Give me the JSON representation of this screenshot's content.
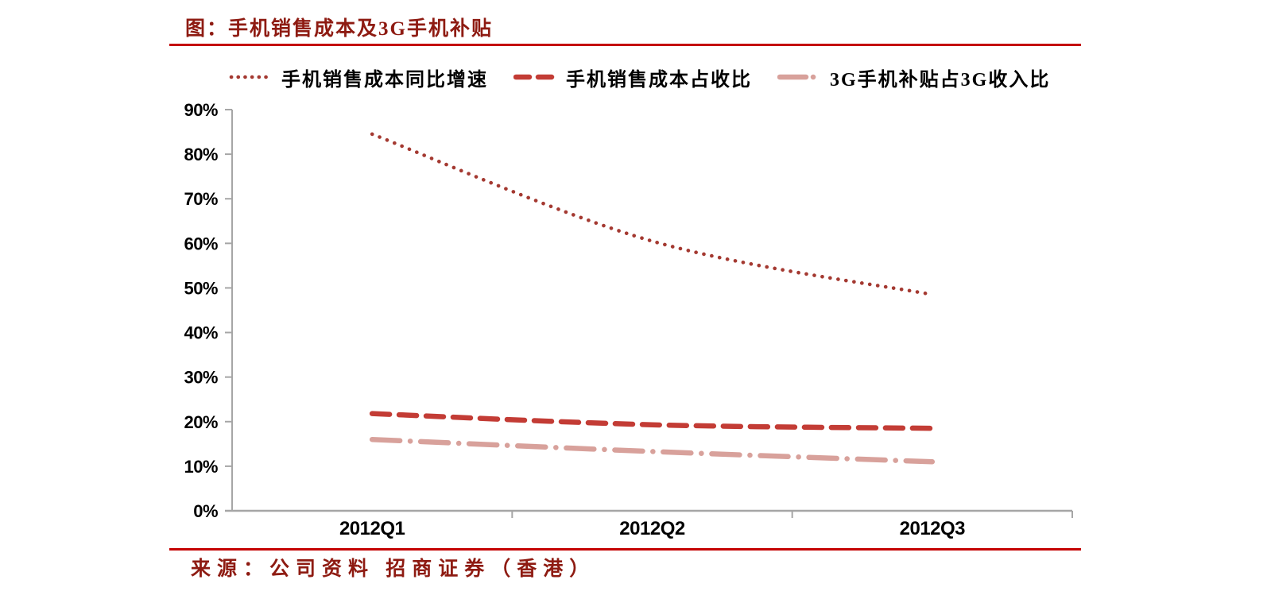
{
  "title": {
    "text": "图：手机销售成本及3G手机补贴",
    "color": "#8E1B12"
  },
  "rules": {
    "color": "#C40000"
  },
  "legend": {
    "items": [
      {
        "label": "手机销售成本同比增速",
        "style": "dotted",
        "color": "#A43931",
        "icon": "dotted-line-icon"
      },
      {
        "label": "手机销售成本占收比",
        "style": "dashed",
        "color": "#C33C35",
        "icon": "dashed-line-icon"
      },
      {
        "label": "3G手机补贴占3G收入比",
        "style": "dashdot",
        "color": "#D8A19B",
        "icon": "dashdot-line-icon"
      }
    ]
  },
  "source": {
    "text": "来源：公司资料 招商证券（香港）",
    "color": "#8E1B12"
  },
  "chart_data": {
    "type": "line",
    "categories": [
      "2012Q1",
      "2012Q2",
      "2012Q3"
    ],
    "series": [
      {
        "name": "手机销售成本同比增速",
        "values": [
          84.5,
          60.5,
          48.5
        ],
        "color": "#A43931",
        "dash": "dotted",
        "smooth": true
      },
      {
        "name": "手机销售成本占收比",
        "values": [
          21.8,
          19.3,
          18.5
        ],
        "color": "#C33C35",
        "dash": "dashed",
        "smooth": true
      },
      {
        "name": "3G手机补贴占3G收入比",
        "values": [
          16.0,
          13.3,
          11.0
        ],
        "color": "#D8A19B",
        "dash": "dashdot",
        "smooth": true
      }
    ],
    "title": "图：手机销售成本及3G手机补贴",
    "xlabel": "",
    "ylabel": "",
    "ylim": [
      0,
      90
    ],
    "ytick_step": 10,
    "ytick_format": "percent",
    "ytick_labels": [
      "0%",
      "10%",
      "20%",
      "30%",
      "40%",
      "50%",
      "60%",
      "70%",
      "80%",
      "90%"
    ],
    "grid": false,
    "legend_position": "top",
    "axis_color": "#A6A6A6",
    "tick_label_color": "#000000"
  }
}
